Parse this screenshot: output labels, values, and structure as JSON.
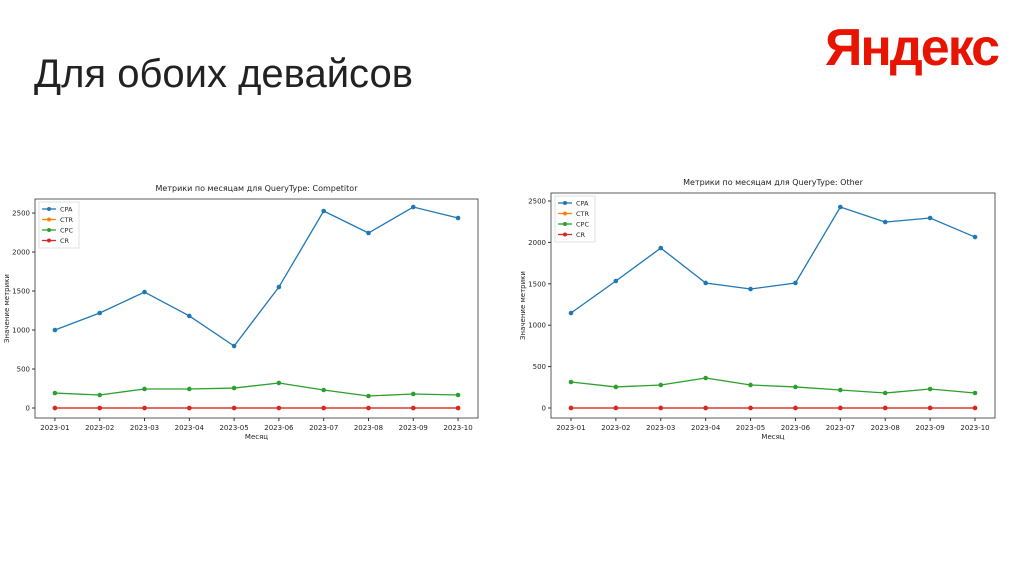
{
  "title": "Для обоих девайсов",
  "logo": "Яндекс",
  "chart_data": [
    {
      "type": "line",
      "title": "Метрики по месяцам для QueryType: Competitor",
      "x_label": "Месяц",
      "y_label": "Значение метрики",
      "categories": [
        "2023-01",
        "2023-02",
        "2023-03",
        "2023-04",
        "2023-05",
        "2023-06",
        "2023-07",
        "2023-08",
        "2023-09",
        "2023-10"
      ],
      "series": [
        {
          "name": "CPA",
          "color": "#1f77b4",
          "values": [
            1000,
            1218,
            1487,
            1180,
            795,
            1551,
            2526,
            2244,
            2577,
            2436
          ]
        },
        {
          "name": "CTR",
          "color": "#ff7f0e",
          "values": [
            0,
            0,
            0,
            0,
            0,
            0,
            0,
            0,
            0,
            0
          ]
        },
        {
          "name": "CPC",
          "color": "#2ca02c",
          "values": [
            192,
            167,
            244,
            244,
            256,
            321,
            231,
            154,
            180,
            167
          ]
        },
        {
          "name": "CR",
          "color": "#d62728",
          "values": [
            0,
            0,
            0,
            0,
            0,
            0,
            0,
            0,
            0,
            0
          ]
        }
      ],
      "ylim": [
        -128,
        2680
      ],
      "yticks": [
        0,
        500,
        1000,
        1500,
        2000,
        2500
      ],
      "legend": "upper-left"
    },
    {
      "type": "line",
      "title": "Метрики по месяцам для QueryType: Other",
      "x_label": "Месяц",
      "y_label": "Значение метрики",
      "categories": [
        "2023-01",
        "2023-02",
        "2023-03",
        "2023-04",
        "2023-05",
        "2023-06",
        "2023-07",
        "2023-08",
        "2023-09",
        "2023-10"
      ],
      "series": [
        {
          "name": "CPA",
          "color": "#1f77b4",
          "values": [
            1147,
            1534,
            1932,
            1510,
            1437,
            1510,
            2428,
            2246,
            2295,
            2065
          ]
        },
        {
          "name": "CTR",
          "color": "#ff7f0e",
          "values": [
            0,
            0,
            0,
            0,
            0,
            0,
            0,
            0,
            0,
            0
          ]
        },
        {
          "name": "CPC",
          "color": "#2ca02c",
          "values": [
            314,
            254,
            278,
            362,
            278,
            254,
            217,
            181,
            229,
            181
          ]
        },
        {
          "name": "CR",
          "color": "#d62728",
          "values": [
            0,
            0,
            0,
            0,
            0,
            0,
            0,
            0,
            0,
            0
          ]
        }
      ],
      "ylim": [
        -121,
        2597
      ],
      "yticks": [
        0,
        500,
        1000,
        1500,
        2000,
        2500
      ],
      "legend": "upper-left"
    }
  ]
}
